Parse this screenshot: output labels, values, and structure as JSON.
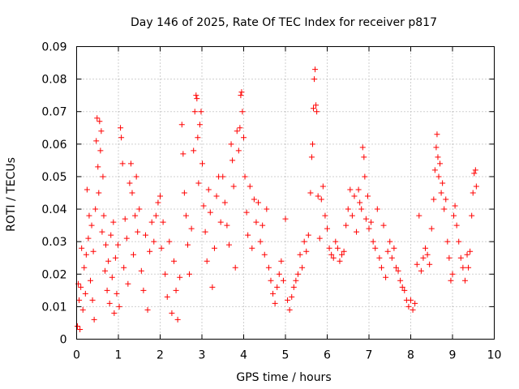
{
  "chart_data": {
    "type": "scatter",
    "title": "Day 146 of 2025, Rate Of TEC Index for receiver p817",
    "xlabel": "GPS time / hours",
    "ylabel": "ROTI / TECUs",
    "xlim": [
      0,
      10
    ],
    "ylim": [
      0,
      0.09
    ],
    "xticks": [
      0,
      1,
      2,
      3,
      4,
      5,
      6,
      7,
      8,
      9,
      10
    ],
    "yticks": [
      0,
      0.01,
      0.02,
      0.03,
      0.04,
      0.05,
      0.06,
      0.07,
      0.08,
      0.09
    ],
    "xtick_labels": [
      "0",
      "1",
      "2",
      "3",
      "4",
      "5",
      "6",
      "7",
      "8",
      "9",
      "10"
    ],
    "ytick_labels": [
      "0",
      "0.01",
      "0.02",
      "0.03",
      "0.04",
      "0.05",
      "0.06",
      "0.07",
      "0.08",
      "0.09"
    ],
    "grid": true,
    "marker": "+",
    "color": "#ff0000",
    "series": [
      {
        "name": "ROTI",
        "points": [
          [
            0.02,
            0.004
          ],
          [
            0.04,
            0.017
          ],
          [
            0.06,
            0.012
          ],
          [
            0.08,
            0.003
          ],
          [
            0.1,
            0.016
          ],
          [
            0.12,
            0.028
          ],
          [
            0.15,
            0.009
          ],
          [
            0.18,
            0.022
          ],
          [
            0.21,
            0.014
          ],
          [
            0.23,
            0.026
          ],
          [
            0.25,
            0.046
          ],
          [
            0.28,
            0.031
          ],
          [
            0.3,
            0.038
          ],
          [
            0.33,
            0.018
          ],
          [
            0.36,
            0.035
          ],
          [
            0.38,
            0.012
          ],
          [
            0.4,
            0.027
          ],
          [
            0.42,
            0.006
          ],
          [
            0.45,
            0.04
          ],
          [
            0.47,
            0.061
          ],
          [
            0.49,
            0.068
          ],
          [
            0.51,
            0.053
          ],
          [
            0.53,
            0.045
          ],
          [
            0.55,
            0.067
          ],
          [
            0.57,
            0.058
          ],
          [
            0.59,
            0.064
          ],
          [
            0.61,
            0.033
          ],
          [
            0.63,
            0.05
          ],
          [
            0.65,
            0.038
          ],
          [
            0.68,
            0.021
          ],
          [
            0.7,
            0.029
          ],
          [
            0.73,
            0.015
          ],
          [
            0.76,
            0.024
          ],
          [
            0.79,
            0.011
          ],
          [
            0.82,
            0.032
          ],
          [
            0.85,
            0.019
          ],
          [
            0.88,
            0.036
          ],
          [
            0.9,
            0.008
          ],
          [
            0.93,
            0.025
          ],
          [
            0.96,
            0.014
          ],
          [
            0.99,
            0.029
          ],
          [
            1.02,
            0.01
          ],
          [
            1.05,
            0.065
          ],
          [
            1.07,
            0.062
          ],
          [
            1.1,
            0.054
          ],
          [
            1.13,
            0.022
          ],
          [
            1.16,
            0.037
          ],
          [
            1.2,
            0.031
          ],
          [
            1.23,
            0.017
          ],
          [
            1.27,
            0.048
          ],
          [
            1.3,
            0.054
          ],
          [
            1.33,
            0.045
          ],
          [
            1.36,
            0.026
          ],
          [
            1.4,
            0.038
          ],
          [
            1.43,
            0.05
          ],
          [
            1.46,
            0.033
          ],
          [
            1.5,
            0.04
          ],
          [
            1.55,
            0.021
          ],
          [
            1.6,
            0.015
          ],
          [
            1.65,
            0.032
          ],
          [
            1.7,
            0.009
          ],
          [
            1.75,
            0.027
          ],
          [
            1.8,
            0.036
          ],
          [
            1.85,
            0.03
          ],
          [
            1.9,
            0.038
          ],
          [
            1.95,
            0.042
          ],
          [
            2.0,
            0.044
          ],
          [
            2.03,
            0.028
          ],
          [
            2.07,
            0.036
          ],
          [
            2.12,
            0.02
          ],
          [
            2.17,
            0.013
          ],
          [
            2.22,
            0.03
          ],
          [
            2.28,
            0.008
          ],
          [
            2.33,
            0.024
          ],
          [
            2.38,
            0.015
          ],
          [
            2.42,
            0.006
          ],
          [
            2.47,
            0.019
          ],
          [
            2.52,
            0.066
          ],
          [
            2.55,
            0.057
          ],
          [
            2.58,
            0.045
          ],
          [
            2.62,
            0.038
          ],
          [
            2.66,
            0.029
          ],
          [
            2.7,
            0.02
          ],
          [
            2.75,
            0.034
          ],
          [
            2.8,
            0.058
          ],
          [
            2.83,
            0.07
          ],
          [
            2.86,
            0.075
          ],
          [
            2.88,
            0.074
          ],
          [
            2.9,
            0.062
          ],
          [
            2.92,
            0.048
          ],
          [
            2.95,
            0.066
          ],
          [
            2.98,
            0.07
          ],
          [
            3.01,
            0.054
          ],
          [
            3.04,
            0.041
          ],
          [
            3.08,
            0.033
          ],
          [
            3.12,
            0.024
          ],
          [
            3.16,
            0.046
          ],
          [
            3.2,
            0.039
          ],
          [
            3.25,
            0.016
          ],
          [
            3.3,
            0.028
          ],
          [
            3.35,
            0.044
          ],
          [
            3.4,
            0.05
          ],
          [
            3.45,
            0.036
          ],
          [
            3.5,
            0.05
          ],
          [
            3.55,
            0.042
          ],
          [
            3.6,
            0.035
          ],
          [
            3.65,
            0.029
          ],
          [
            3.7,
            0.06
          ],
          [
            3.73,
            0.055
          ],
          [
            3.76,
            0.047
          ],
          [
            3.8,
            0.022
          ],
          [
            3.84,
            0.064
          ],
          [
            3.88,
            0.058
          ],
          [
            3.91,
            0.065
          ],
          [
            3.93,
            0.075
          ],
          [
            3.95,
            0.076
          ],
          [
            3.97,
            0.07
          ],
          [
            4.0,
            0.062
          ],
          [
            4.03,
            0.05
          ],
          [
            4.07,
            0.039
          ],
          [
            4.1,
            0.032
          ],
          [
            4.15,
            0.047
          ],
          [
            4.2,
            0.028
          ],
          [
            4.25,
            0.043
          ],
          [
            4.3,
            0.036
          ],
          [
            4.35,
            0.042
          ],
          [
            4.4,
            0.03
          ],
          [
            4.45,
            0.035
          ],
          [
            4.5,
            0.026
          ],
          [
            4.55,
            0.04
          ],
          [
            4.6,
            0.022
          ],
          [
            4.65,
            0.018
          ],
          [
            4.7,
            0.014
          ],
          [
            4.75,
            0.011
          ],
          [
            4.8,
            0.016
          ],
          [
            4.85,
            0.02
          ],
          [
            4.9,
            0.024
          ],
          [
            4.95,
            0.018
          ],
          [
            5.0,
            0.037
          ],
          [
            5.05,
            0.012
          ],
          [
            5.1,
            0.009
          ],
          [
            5.15,
            0.013
          ],
          [
            5.2,
            0.016
          ],
          [
            5.25,
            0.018
          ],
          [
            5.3,
            0.02
          ],
          [
            5.35,
            0.026
          ],
          [
            5.4,
            0.022
          ],
          [
            5.45,
            0.03
          ],
          [
            5.5,
            0.027
          ],
          [
            5.55,
            0.032
          ],
          [
            5.6,
            0.045
          ],
          [
            5.63,
            0.056
          ],
          [
            5.65,
            0.06
          ],
          [
            5.67,
            0.071
          ],
          [
            5.69,
            0.08
          ],
          [
            5.71,
            0.083
          ],
          [
            5.73,
            0.072
          ],
          [
            5.75,
            0.07
          ],
          [
            5.78,
            0.044
          ],
          [
            5.82,
            0.031
          ],
          [
            5.86,
            0.043
          ],
          [
            5.9,
            0.047
          ],
          [
            5.95,
            0.038
          ],
          [
            6.0,
            0.034
          ],
          [
            6.05,
            0.028
          ],
          [
            6.1,
            0.026
          ],
          [
            6.15,
            0.025
          ],
          [
            6.2,
            0.03
          ],
          [
            6.25,
            0.028
          ],
          [
            6.3,
            0.024
          ],
          [
            6.35,
            0.026
          ],
          [
            6.4,
            0.027
          ],
          [
            6.45,
            0.035
          ],
          [
            6.5,
            0.04
          ],
          [
            6.55,
            0.046
          ],
          [
            6.6,
            0.038
          ],
          [
            6.65,
            0.044
          ],
          [
            6.7,
            0.033
          ],
          [
            6.75,
            0.046
          ],
          [
            6.78,
            0.042
          ],
          [
            6.82,
            0.04
          ],
          [
            6.85,
            0.059
          ],
          [
            6.88,
            0.056
          ],
          [
            6.9,
            0.05
          ],
          [
            6.93,
            0.037
          ],
          [
            6.97,
            0.044
          ],
          [
            7.0,
            0.034
          ],
          [
            7.05,
            0.036
          ],
          [
            7.1,
            0.03
          ],
          [
            7.15,
            0.028
          ],
          [
            7.2,
            0.04
          ],
          [
            7.25,
            0.025
          ],
          [
            7.3,
            0.022
          ],
          [
            7.35,
            0.035
          ],
          [
            7.4,
            0.019
          ],
          [
            7.45,
            0.027
          ],
          [
            7.5,
            0.03
          ],
          [
            7.55,
            0.025
          ],
          [
            7.6,
            0.028
          ],
          [
            7.65,
            0.022
          ],
          [
            7.7,
            0.021
          ],
          [
            7.75,
            0.018
          ],
          [
            7.8,
            0.016
          ],
          [
            7.85,
            0.015
          ],
          [
            7.9,
            0.012
          ],
          [
            7.95,
            0.01
          ],
          [
            8.0,
            0.012
          ],
          [
            8.05,
            0.009
          ],
          [
            8.1,
            0.011
          ],
          [
            8.15,
            0.023
          ],
          [
            8.2,
            0.038
          ],
          [
            8.25,
            0.021
          ],
          [
            8.3,
            0.025
          ],
          [
            8.35,
            0.028
          ],
          [
            8.4,
            0.026
          ],
          [
            8.45,
            0.023
          ],
          [
            8.5,
            0.034
          ],
          [
            8.55,
            0.043
          ],
          [
            8.58,
            0.052
          ],
          [
            8.61,
            0.059
          ],
          [
            8.63,
            0.063
          ],
          [
            8.65,
            0.056
          ],
          [
            8.67,
            0.05
          ],
          [
            8.7,
            0.054
          ],
          [
            8.73,
            0.045
          ],
          [
            8.76,
            0.048
          ],
          [
            8.8,
            0.04
          ],
          [
            8.84,
            0.043
          ],
          [
            8.88,
            0.03
          ],
          [
            8.92,
            0.025
          ],
          [
            8.96,
            0.018
          ],
          [
            9.0,
            0.02
          ],
          [
            9.03,
            0.038
          ],
          [
            9.06,
            0.041
          ],
          [
            9.1,
            0.035
          ],
          [
            9.15,
            0.03
          ],
          [
            9.2,
            0.025
          ],
          [
            9.25,
            0.022
          ],
          [
            9.3,
            0.018
          ],
          [
            9.35,
            0.026
          ],
          [
            9.38,
            0.022
          ],
          [
            9.42,
            0.027
          ],
          [
            9.46,
            0.038
          ],
          [
            9.49,
            0.045
          ],
          [
            9.52,
            0.051
          ],
          [
            9.55,
            0.052
          ],
          [
            9.57,
            0.047
          ]
        ]
      }
    ]
  }
}
